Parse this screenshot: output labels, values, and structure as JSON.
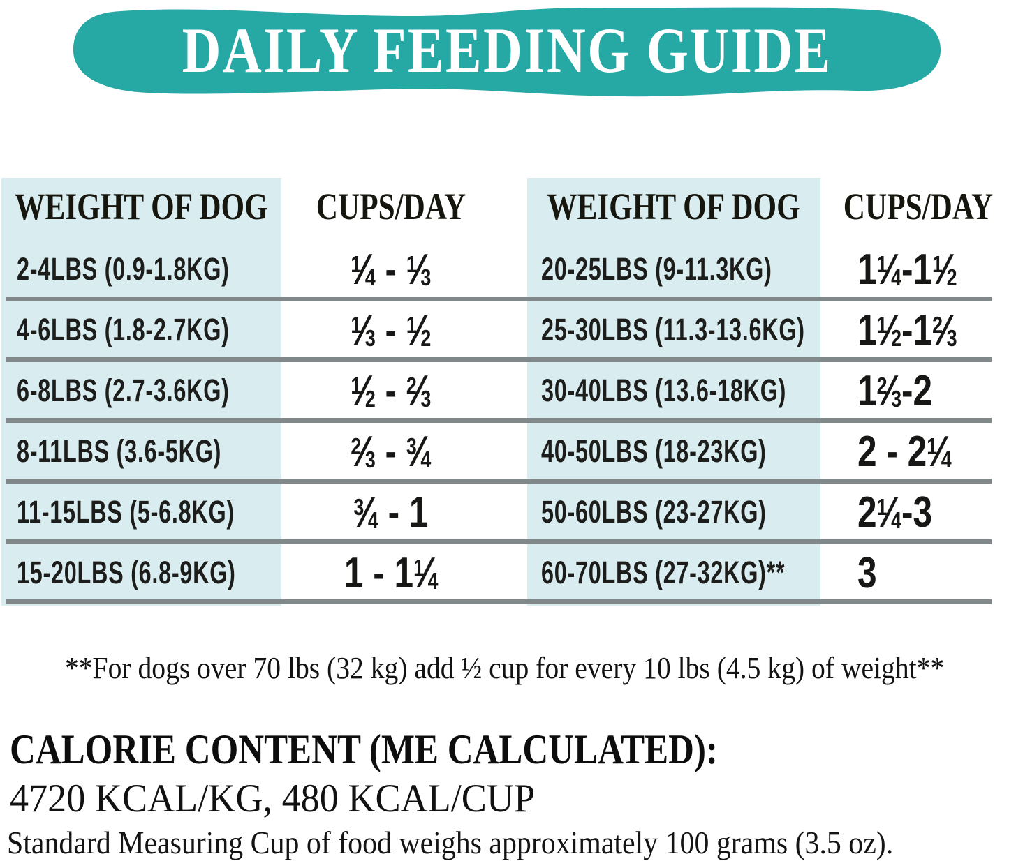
{
  "banner": {
    "title": "DAILY FEEDING GUIDE",
    "background_color": "#26a8a4",
    "text_color": "#ffffff"
  },
  "table": {
    "highlight_color": "#d9edf1",
    "divider_color": "#81888a",
    "left": {
      "weight_header": "WEIGHT OF DOG",
      "cups_header": "CUPS/DAY",
      "rows": [
        {
          "weight": "2-4LBS (0.9-1.8KG)",
          "cups": "¼ - ⅓"
        },
        {
          "weight": "4-6LBS (1.8-2.7KG)",
          "cups": "⅓ - ½"
        },
        {
          "weight": "6-8LBS (2.7-3.6KG)",
          "cups": "½ - ⅔"
        },
        {
          "weight": "8-11LBS (3.6-5KG)",
          "cups": "⅔ - ¾"
        },
        {
          "weight": "11-15LBS (5-6.8KG)",
          "cups": "¾ - 1"
        },
        {
          "weight": "15-20LBS (6.8-9KG)",
          "cups": "1 - 1¼"
        }
      ]
    },
    "right": {
      "weight_header": "WEIGHT OF DOG",
      "cups_header": "CUPS/DAY",
      "rows": [
        {
          "weight": "20-25LBS (9-11.3KG)",
          "cups": "1¼-1½"
        },
        {
          "weight": "25-30LBS (11.3-13.6KG)",
          "cups": "1½-1⅔"
        },
        {
          "weight": "30-40LBS (13.6-18KG)",
          "cups": "1⅔-2"
        },
        {
          "weight": "40-50LBS (18-23KG)",
          "cups": "2 - 2¼"
        },
        {
          "weight": "50-60LBS (23-27KG)",
          "cups": "2¼-3"
        },
        {
          "weight": "60-70LBS (27-32KG)**",
          "cups": "3"
        }
      ]
    }
  },
  "notes": {
    "over_70": "**For dogs over 70 lbs (32 kg) add ½ cup for every 10 lbs (4.5 kg) of weight**"
  },
  "calorie": {
    "heading": "CALORIE CONTENT (ME CALCULATED):",
    "values": "4720 KCAL/KG, 480 KCAL/CUP",
    "cup_weight": "Standard Measuring Cup of food weighs approximately 100 grams (3.5 oz)."
  }
}
